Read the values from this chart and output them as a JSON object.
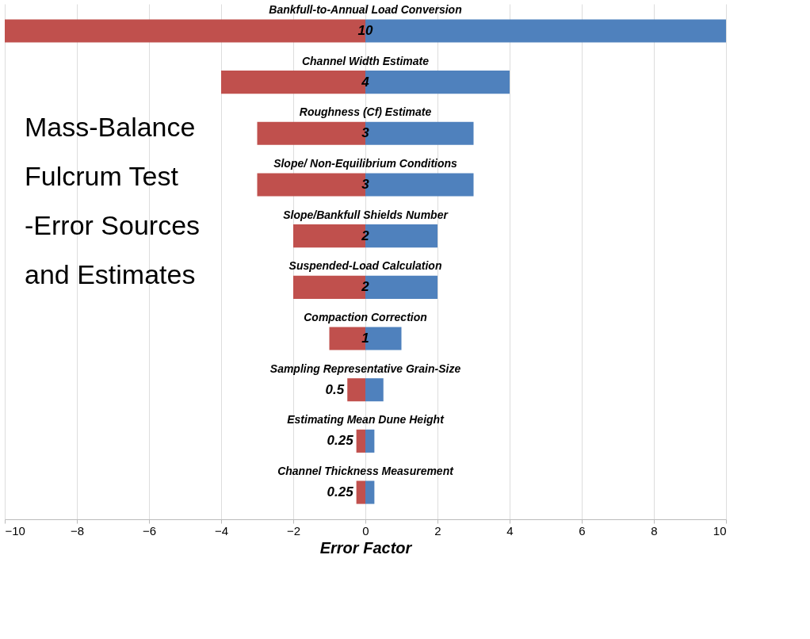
{
  "chart_data": {
    "type": "bar",
    "orientation": "horizontal",
    "stacked": true,
    "title": "Mass-Balance\nFulcrum Test\n-Error Sources\nand Estimates",
    "xlabel": "Error Factor",
    "categories": [
      "Bankfull-to-Annual Load Conversion",
      "Channel Width Estimate",
      "Roughness (Cf) Estimate",
      "Slope/ Non-Equilibrium Conditions",
      "Slope/Bankfull Shields Number",
      "Suspended-Load Calculation",
      "Compaction Correction",
      "Sampling Representative Grain-Size",
      "Estimating Mean Dune Height",
      "Channel Thickness Measurement"
    ],
    "series": [
      {
        "color": "#c0504d",
        "values": [
          -10,
          -4,
          -3,
          -3,
          -2,
          -2,
          -1,
          -0.5,
          -0.25,
          -0.25
        ]
      },
      {
        "color": "#4f81bd",
        "values": [
          10,
          4,
          3,
          3,
          2,
          2,
          1,
          0.5,
          0.25,
          0.25
        ],
        "value_labels": [
          "10",
          "4",
          "3",
          "3",
          "2",
          "2",
          "1",
          "0.5",
          "0.25",
          "0.25"
        ]
      }
    ],
    "xlim": [
      -10,
      10
    ],
    "xticks": [
      -10,
      -8,
      -6,
      -4,
      -2,
      0,
      2,
      4,
      6,
      8,
      10
    ],
    "grid": "x",
    "tick_labels": "x",
    "legend": false
  }
}
